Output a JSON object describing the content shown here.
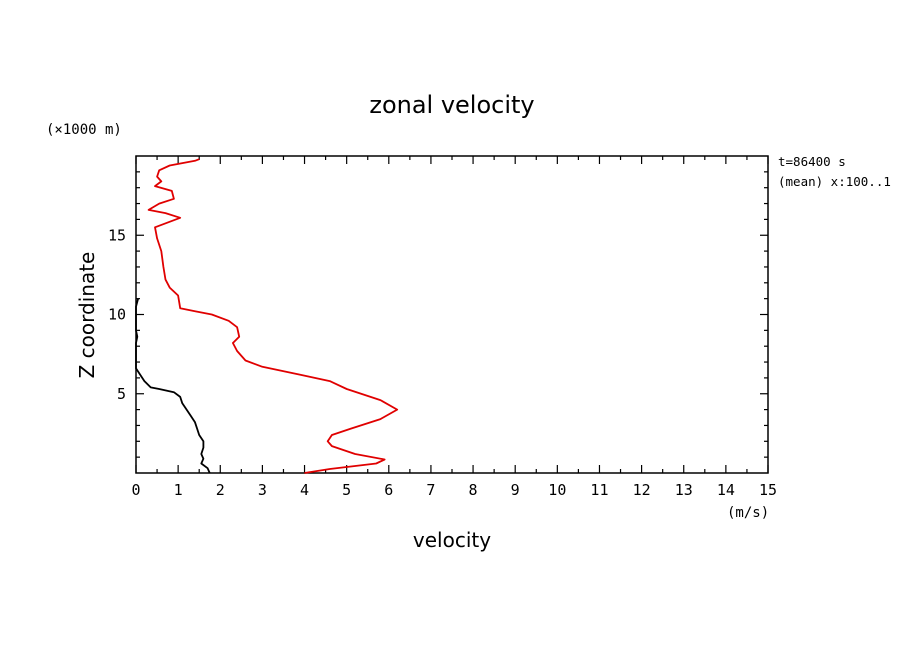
{
  "chart_data": {
    "type": "line",
    "title": "zonal velocity",
    "xlabel": "velocity",
    "ylabel": "Z coordinate",
    "x_unit": "(m/s)",
    "y_unit": "(×1000 m)",
    "annotations": [
      "t=86400 s",
      "(mean) x:100..1"
    ],
    "xlim": [
      0,
      15
    ],
    "ylim": [
      0,
      20
    ],
    "x_ticks": [
      "0",
      "1",
      "2",
      "3",
      "4",
      "5",
      "6",
      "7",
      "8",
      "9",
      "10",
      "11",
      "12",
      "13",
      "14",
      "15"
    ],
    "y_ticks": [
      "5",
      "10",
      "15"
    ],
    "grid": false,
    "series": [
      {
        "color": "#000000",
        "points": [
          [
            1.75,
            0.0
          ],
          [
            1.7,
            0.3
          ],
          [
            1.55,
            0.6
          ],
          [
            1.6,
            0.9
          ],
          [
            1.55,
            1.2
          ],
          [
            1.6,
            1.6
          ],
          [
            1.6,
            2.0
          ],
          [
            1.5,
            2.4
          ],
          [
            1.45,
            2.8
          ],
          [
            1.4,
            3.2
          ],
          [
            1.3,
            3.6
          ],
          [
            1.2,
            4.0
          ],
          [
            1.1,
            4.4
          ],
          [
            1.05,
            4.8
          ],
          [
            0.9,
            5.1
          ],
          [
            0.55,
            5.3
          ],
          [
            0.35,
            5.4
          ],
          [
            0.2,
            5.8
          ],
          [
            0.1,
            6.2
          ],
          [
            0.0,
            6.6
          ],
          [
            0.0,
            7.5
          ],
          [
            0.0,
            8.2
          ],
          [
            0.03,
            8.6
          ],
          [
            0.0,
            9.0
          ],
          [
            0.0,
            10.5
          ],
          [
            0.05,
            11.0
          ]
        ]
      },
      {
        "color": "#e00000",
        "points": [
          [
            4.0,
            0.0
          ],
          [
            4.6,
            0.25
          ],
          [
            5.7,
            0.6
          ],
          [
            5.9,
            0.85
          ],
          [
            5.2,
            1.2
          ],
          [
            4.65,
            1.7
          ],
          [
            4.55,
            2.0
          ],
          [
            4.65,
            2.4
          ],
          [
            5.1,
            2.8
          ],
          [
            5.8,
            3.4
          ],
          [
            6.2,
            4.0
          ],
          [
            5.8,
            4.6
          ],
          [
            5.0,
            5.3
          ],
          [
            4.6,
            5.8
          ],
          [
            3.9,
            6.2
          ],
          [
            3.0,
            6.7
          ],
          [
            2.6,
            7.1
          ],
          [
            2.4,
            7.7
          ],
          [
            2.3,
            8.2
          ],
          [
            2.45,
            8.6
          ],
          [
            2.4,
            9.2
          ],
          [
            2.2,
            9.6
          ],
          [
            1.8,
            10.0
          ],
          [
            1.4,
            10.2
          ],
          [
            1.05,
            10.4
          ],
          [
            1.0,
            11.2
          ],
          [
            0.8,
            11.7
          ],
          [
            0.7,
            12.2
          ],
          [
            0.65,
            13.0
          ],
          [
            0.6,
            14.0
          ],
          [
            0.5,
            14.8
          ],
          [
            0.45,
            15.5
          ],
          [
            1.05,
            16.1
          ],
          [
            0.7,
            16.4
          ],
          [
            0.3,
            16.6
          ],
          [
            0.55,
            17.0
          ],
          [
            0.9,
            17.3
          ],
          [
            0.85,
            17.8
          ],
          [
            0.45,
            18.1
          ],
          [
            0.6,
            18.4
          ],
          [
            0.5,
            18.7
          ],
          [
            0.55,
            19.1
          ],
          [
            0.8,
            19.4
          ],
          [
            1.4,
            19.7
          ],
          [
            1.5,
            19.8
          ]
        ]
      }
    ]
  }
}
